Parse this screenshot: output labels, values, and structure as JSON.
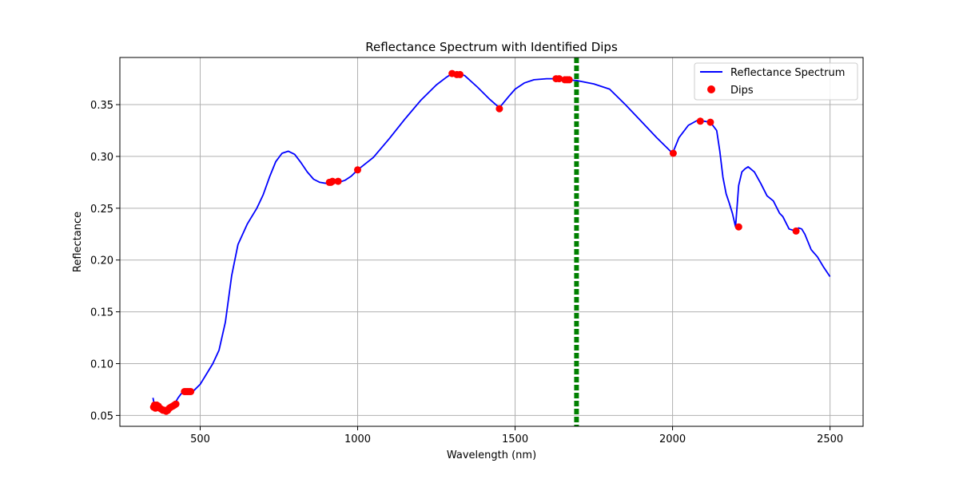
{
  "chart_data": {
    "type": "line",
    "title": "Reflectance Spectrum with Identified Dips",
    "xlabel": "Wavelength (nm)",
    "ylabel": "Reflectance",
    "xlim": [
      245,
      2605
    ],
    "ylim": [
      0.0395,
      0.3955
    ],
    "x_ticks": [
      500,
      1000,
      1500,
      2000,
      2500
    ],
    "y_ticks": [
      0.05,
      0.1,
      0.15,
      0.2,
      0.25,
      0.3,
      0.35
    ],
    "grid": true,
    "legend_position": "top-right",
    "colors": {
      "spectrum": "#0000ff",
      "dips": "#ff0000",
      "vertical_lines": "#008000",
      "grid": "#b0b0b0"
    },
    "series": [
      {
        "name": "Reflectance Spectrum",
        "kind": "line",
        "x": [
          350,
          352,
          355,
          358,
          360,
          365,
          370,
          375,
          380,
          385,
          390,
          395,
          400,
          410,
          420,
          430,
          440,
          450,
          460,
          470,
          480,
          500,
          520,
          540,
          560,
          580,
          600,
          620,
          650,
          680,
          700,
          720,
          740,
          760,
          780,
          800,
          820,
          840,
          860,
          880,
          900,
          920,
          940,
          960,
          980,
          1000,
          1050,
          1100,
          1150,
          1200,
          1250,
          1280,
          1300,
          1320,
          1340,
          1380,
          1420,
          1450,
          1480,
          1500,
          1530,
          1560,
          1600,
          1640,
          1670,
          1700,
          1750,
          1800,
          1850,
          1900,
          1950,
          2000,
          2020,
          2050,
          2080,
          2100,
          2120,
          2140,
          2150,
          2160,
          2170,
          2180,
          2190,
          2200,
          2210,
          2220,
          2230,
          2240,
          2260,
          2280,
          2300,
          2320,
          2340,
          2350,
          2370,
          2390,
          2400,
          2410,
          2420,
          2440,
          2460,
          2480,
          2500
        ],
        "y": [
          0.067,
          0.064,
          0.059,
          0.061,
          0.06,
          0.059,
          0.057,
          0.056,
          0.055,
          0.055,
          0.055,
          0.056,
          0.058,
          0.059,
          0.062,
          0.067,
          0.071,
          0.073,
          0.073,
          0.073,
          0.074,
          0.08,
          0.09,
          0.1,
          0.113,
          0.14,
          0.185,
          0.215,
          0.235,
          0.25,
          0.263,
          0.28,
          0.295,
          0.303,
          0.305,
          0.302,
          0.294,
          0.285,
          0.278,
          0.275,
          0.274,
          0.274,
          0.275,
          0.277,
          0.281,
          0.287,
          0.299,
          0.317,
          0.336,
          0.354,
          0.369,
          0.376,
          0.38,
          0.38,
          0.378,
          0.367,
          0.355,
          0.347,
          0.358,
          0.365,
          0.371,
          0.374,
          0.375,
          0.375,
          0.374,
          0.373,
          0.37,
          0.365,
          0.35,
          0.334,
          0.318,
          0.303,
          0.318,
          0.33,
          0.335,
          0.334,
          0.333,
          0.325,
          0.305,
          0.28,
          0.264,
          0.255,
          0.245,
          0.232,
          0.272,
          0.285,
          0.288,
          0.29,
          0.285,
          0.274,
          0.262,
          0.257,
          0.245,
          0.242,
          0.23,
          0.228,
          0.231,
          0.23,
          0.225,
          0.21,
          0.203,
          0.193,
          0.184
        ]
      },
      {
        "name": "Dips",
        "kind": "scatter",
        "x": [
          352,
          355,
          358,
          362,
          367,
          372,
          377,
          382,
          387,
          392,
          397,
          402,
          407,
          413,
          418,
          423,
          450,
          455,
          460,
          465,
          470,
          910,
          915,
          920,
          938,
          1000,
          1300,
          1315,
          1325,
          1450,
          1630,
          1640,
          1658,
          1665,
          1672,
          2002,
          2088,
          2120,
          2210,
          2392
        ],
        "y": [
          0.058,
          0.06,
          0.057,
          0.06,
          0.059,
          0.057,
          0.056,
          0.055,
          0.055,
          0.054,
          0.055,
          0.057,
          0.058,
          0.059,
          0.06,
          0.061,
          0.073,
          0.073,
          0.073,
          0.073,
          0.073,
          0.275,
          0.275,
          0.276,
          0.276,
          0.287,
          0.38,
          0.379,
          0.379,
          0.346,
          0.375,
          0.375,
          0.374,
          0.374,
          0.374,
          0.303,
          0.334,
          0.333,
          0.232,
          0.228
        ]
      }
    ],
    "vertical_lines": [
      1690,
      1693,
      1696,
      1700
    ]
  }
}
